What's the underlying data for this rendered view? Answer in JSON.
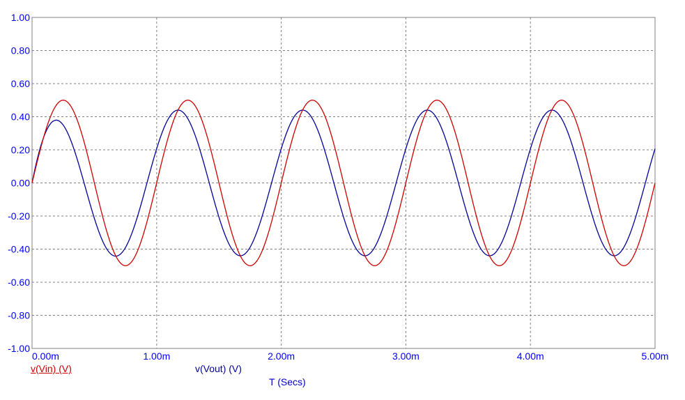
{
  "chart_data": {
    "type": "line",
    "xlabel": "T (Secs)",
    "xlim": [
      0,
      0.005
    ],
    "ylim": [
      -1.0,
      1.0
    ],
    "x_ticks": [
      "0.00m",
      "1.00m",
      "2.00m",
      "3.00m",
      "4.00m",
      "5.00m"
    ],
    "y_ticks": [
      "1.00",
      "0.80",
      "0.60",
      "0.40",
      "0.20",
      "0.00",
      "-0.20",
      "-0.40",
      "-0.60",
      "-0.80",
      "-1.00"
    ],
    "grid": true,
    "series": [
      {
        "name": "v(Vin) (V)",
        "color": "#cc0000",
        "frequency_hz": 1000,
        "amplitude": 0.5,
        "phase_deg": 0
      },
      {
        "name": "v(Vout) (V)",
        "color": "#000099",
        "frequency_hz": 1000,
        "amplitude": 0.44,
        "phase_deg": 28,
        "transient_first_peak": 0.33,
        "transient_first_trough": -0.46
      }
    ]
  }
}
